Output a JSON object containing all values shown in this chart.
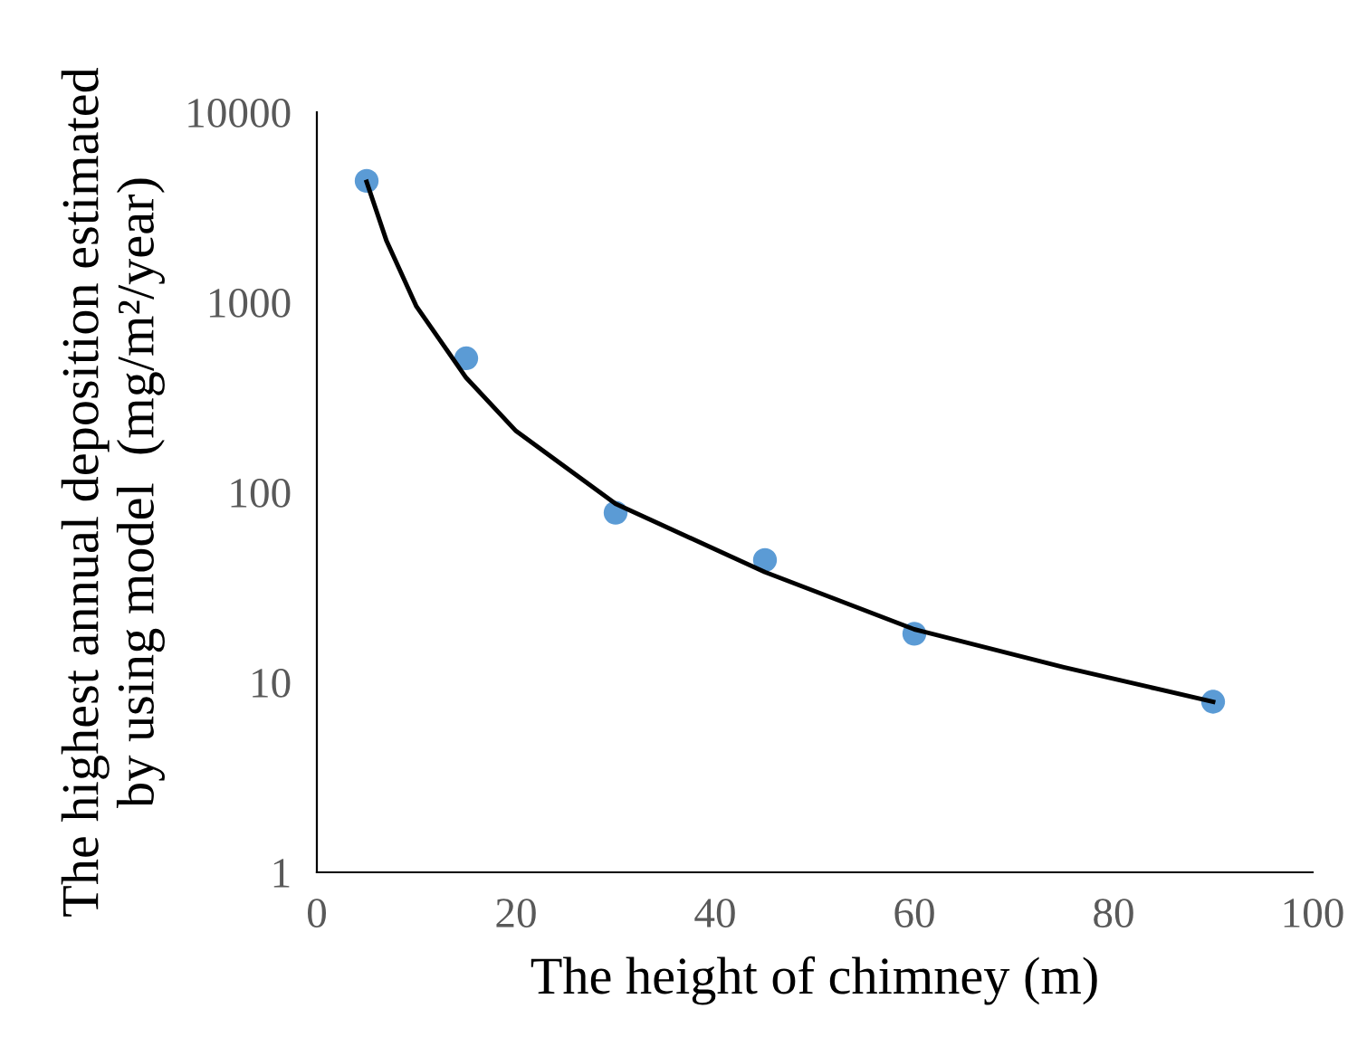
{
  "chart_data": {
    "type": "scatter",
    "xlabel": "The height of chimney (m)",
    "ylabel": "The highest annual deposition estimated\nby using model  (mg/m²/year)",
    "log": "y",
    "xlim": [
      0,
      100
    ],
    "xticks": [
      0,
      20,
      40,
      60,
      80,
      100
    ],
    "ylim": [
      1,
      10000
    ],
    "yticks": [
      1,
      10,
      100,
      1000,
      10000
    ],
    "grid": false,
    "marker": "circle",
    "series": [
      {
        "color": "#5b9bd5",
        "x": [
          5,
          15,
          30,
          45,
          60,
          90
        ],
        "values": [
          4350,
          507,
          78,
          44,
          18,
          7.9
        ]
      },
      {
        "type": "line",
        "color": "#000000",
        "line_style": "solid",
        "marker": "none",
        "x": [
          5,
          7,
          10,
          15,
          20,
          30,
          45,
          60,
          75,
          90
        ],
        "values": [
          4300,
          2100,
          950,
          400,
          210,
          87,
          38,
          19,
          12,
          7.9
        ]
      }
    ]
  }
}
